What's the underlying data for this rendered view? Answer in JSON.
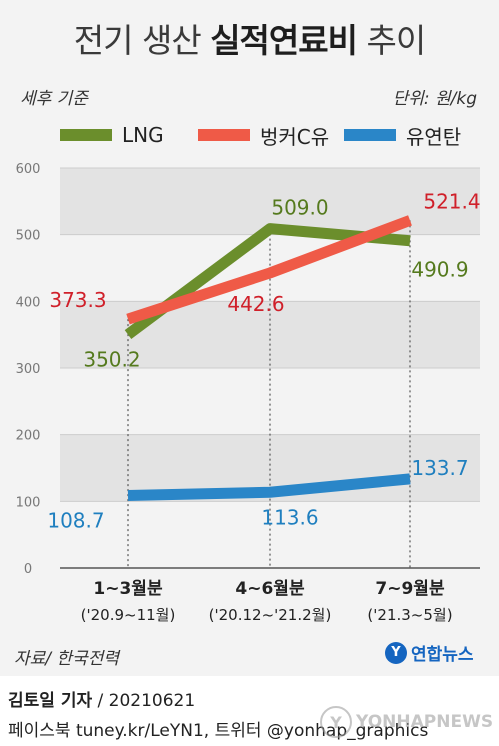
{
  "header": {
    "title_prefix": "전기 생산 ",
    "title_bold": "실적연료비",
    "title_suffix": " 추이",
    "basis": "세후 기준",
    "unit": "단위: 원/kg"
  },
  "colors": {
    "LNG": "#6b8e2c",
    "bunker": "#ef5a47",
    "coal": "#2a86c8",
    "label_red": "#d0202a",
    "label_green": "#557a1e",
    "label_blue": "#1f7fbf",
    "band": "#e3e3e3"
  },
  "chart_data": {
    "type": "line",
    "categories": [
      "1~3월분",
      "4~6월분",
      "7~9월분"
    ],
    "category_sublabels": [
      "('20.9~11월)",
      "('20.12~'21.2월)",
      "('21.3~5월)"
    ],
    "ylim": [
      0,
      600
    ],
    "yticks": [
      0,
      100,
      200,
      300,
      400,
      500,
      600
    ],
    "series": [
      {
        "name": "LNG",
        "values": [
          350.2,
          509.0,
          490.9
        ],
        "labels": [
          "350.2",
          "509.0",
          "490.9"
        ]
      },
      {
        "name": "벙커C유",
        "values": [
          373.3,
          442.6,
          521.4
        ],
        "labels": [
          "373.3",
          "442.6",
          "521.4"
        ]
      },
      {
        "name": "유연탄",
        "values": [
          108.7,
          113.6,
          133.7
        ],
        "labels": [
          "108.7",
          "113.6",
          "133.7"
        ]
      }
    ],
    "legend_position": "top"
  },
  "footer": {
    "source": "자료/ 한국전력",
    "logo": "연합뉴스",
    "logo_mark": "Y",
    "author": "김토일 기자",
    "date": "/ 20210621",
    "social": "페이스북 tuney.kr/LeYN1, 트위터 @yonhap_graphics",
    "watermark": "YONHAPNEWS"
  }
}
